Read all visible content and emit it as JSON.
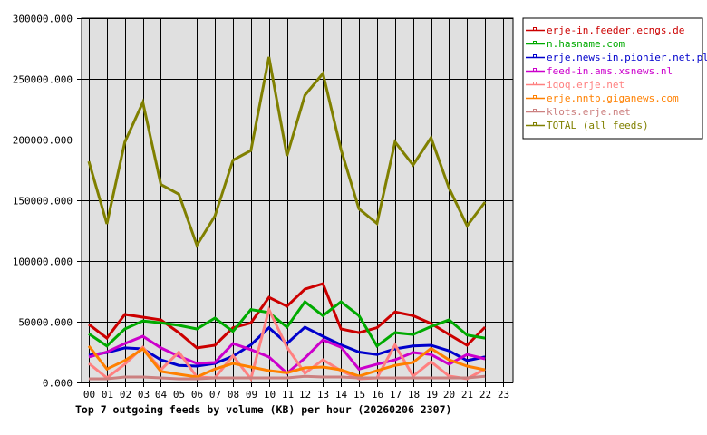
{
  "chart_data": {
    "type": "line",
    "title": "Top 7 outgoing feeds by volume (KB) per hour (20260206 2307)",
    "xlabel": "",
    "ylabel": "",
    "ylim": [
      0,
      300000
    ],
    "y_ticks": [
      "0.000",
      "50000.000",
      "100000.000",
      "150000.000",
      "200000.000",
      "250000.000",
      "300000.000"
    ],
    "y_tick_values": [
      0,
      50000,
      100000,
      150000,
      200000,
      250000,
      300000
    ],
    "x": [
      "00",
      "01",
      "02",
      "03",
      "04",
      "05",
      "06",
      "07",
      "08",
      "09",
      "10",
      "11",
      "12",
      "13",
      "14",
      "15",
      "16",
      "17",
      "18",
      "19",
      "20",
      "21",
      "22",
      "23"
    ],
    "grid": true,
    "legend_position": "right",
    "series": [
      {
        "name": "erje-in.feeder.ecngs.de",
        "color": "#cc0000",
        "values": [
          47800,
          36500,
          56000,
          53700,
          51500,
          41000,
          28400,
          30600,
          45000,
          49000,
          70000,
          62700,
          76800,
          81300,
          44000,
          41000,
          45000,
          58000,
          55000,
          48500,
          39500,
          30600,
          45500
        ]
      },
      {
        "name": "n.hasname.com",
        "color": "#00aa00",
        "values": [
          40000,
          30000,
          44000,
          50700,
          49000,
          47000,
          44000,
          53000,
          42000,
          60000,
          57500,
          45500,
          66400,
          55000,
          66400,
          55000,
          30000,
          41000,
          39500,
          46000,
          51500,
          39000,
          36500
        ]
      },
      {
        "name": "erje.news-in.pionier.net.pl",
        "color": "#0000cc",
        "values": [
          22400,
          24600,
          28400,
          27600,
          18600,
          14000,
          13400,
          15700,
          21600,
          31000,
          45000,
          32000,
          45500,
          38000,
          31000,
          25000,
          23000,
          27600,
          30000,
          30600,
          26000,
          18000,
          21000
        ]
      },
      {
        "name": "feed-in.ams.xsnews.nl",
        "color": "#cc00cc",
        "values": [
          21000,
          25000,
          32000,
          38000,
          28400,
          21600,
          15700,
          16400,
          32000,
          27000,
          21000,
          7500,
          20000,
          35000,
          29000,
          11000,
          15000,
          18600,
          24600,
          23000,
          15000,
          23000,
          19400
        ]
      },
      {
        "name": "iqoq.erje.net",
        "color": "#ff8080",
        "values": [
          15700,
          3700,
          15000,
          29000,
          10400,
          25000,
          4500,
          3700,
          22000,
          3000,
          60000,
          29000,
          7500,
          18600,
          9700,
          3000,
          3700,
          31000,
          5200,
          17000,
          5200,
          3000,
          11000
        ]
      },
      {
        "name": "erje.nntp.giganews.com",
        "color": "#ff8000",
        "values": [
          30000,
          11000,
          18000,
          27600,
          9000,
          6700,
          4500,
          11000,
          15700,
          12700,
          9700,
          8000,
          12000,
          12700,
          10400,
          5200,
          9700,
          14000,
          16400,
          28000,
          18600,
          13400,
          10400
        ]
      },
      {
        "name": "klots.erje.net",
        "color": "#cc8080",
        "values": [
          3000,
          3000,
          4500,
          4500,
          3700,
          3000,
          3000,
          3700,
          3700,
          3700,
          3700,
          3700,
          5000,
          4500,
          4500,
          3700,
          3700,
          3700,
          3700,
          3700,
          3700,
          3700,
          5000
        ]
      },
      {
        "name": "TOTAL (all feeds)",
        "color": "#808000",
        "values": [
          182000,
          130600,
          198000,
          230600,
          163000,
          155000,
          113000,
          137000,
          183000,
          191000,
          268000,
          186600,
          236600,
          254500,
          191800,
          143000,
          131000,
          198000,
          179000,
          201500,
          160000,
          129000,
          148500
        ]
      }
    ]
  },
  "colors": {
    "plot_background": "#e0e0e0",
    "grid": "#000000",
    "axis": "#000000"
  }
}
